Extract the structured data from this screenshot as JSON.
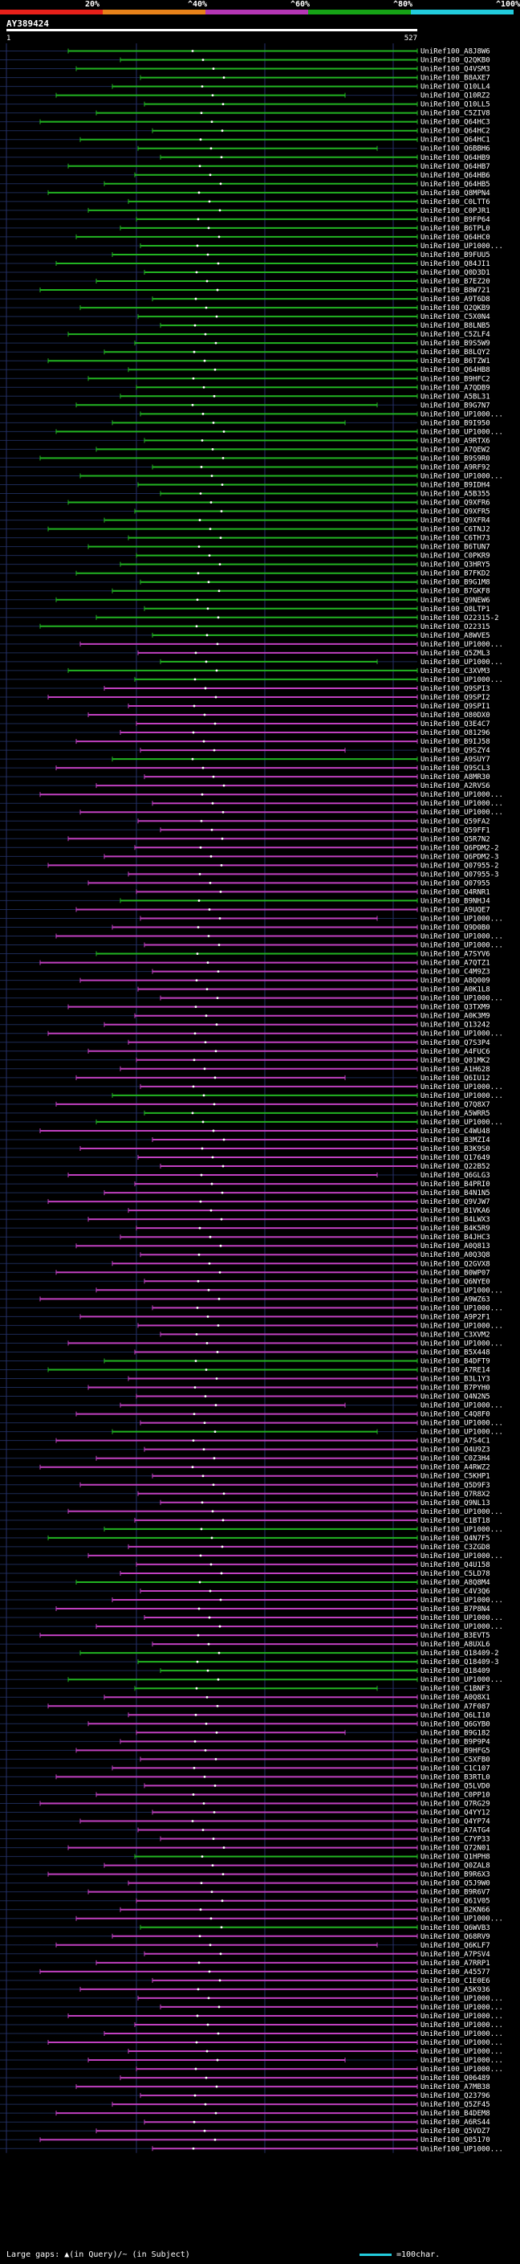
{
  "legend": {
    "bins": [
      {
        "label": "20%",
        "color": "#e8201a"
      },
      {
        "label": "^40%",
        "color": "#e8821a"
      },
      {
        "label": "^60%",
        "color": "#b536b5"
      },
      {
        "label": "^80%",
        "color": "#16a316"
      },
      {
        "label": "^100%",
        "color": "#22ccdd"
      }
    ]
  },
  "query": {
    "id": "AY389424",
    "ruler_start": "1",
    "ruler_end": "527"
  },
  "hits": [
    {
      "label": "UniRef100_A8J8W6",
      "color": "green"
    },
    {
      "label": "UniRef100_Q2QKB0",
      "color": "green"
    },
    {
      "label": "UniRef100_Q4VSM3",
      "color": "green"
    },
    {
      "label": "UniRef100_B8AXE7",
      "color": "green"
    },
    {
      "label": "UniRef100_Q10LL4",
      "color": "green"
    },
    {
      "label": "UniRef100_Q10RZ2",
      "color": "green"
    },
    {
      "label": "UniRef100_Q10LL5",
      "color": "green"
    },
    {
      "label": "UniRef100_C5ZIV8",
      "color": "green"
    },
    {
      "label": "UniRef100_Q64HC3",
      "color": "green"
    },
    {
      "label": "UniRef100_Q64HC2",
      "color": "green"
    },
    {
      "label": "UniRef100_Q64HC1",
      "color": "green"
    },
    {
      "label": "UniRef100_Q6BBH6",
      "color": "green"
    },
    {
      "label": "UniRef100_Q64HB9",
      "color": "green"
    },
    {
      "label": "UniRef100_Q64HB7",
      "color": "green"
    },
    {
      "label": "UniRef100_Q64HB6",
      "color": "green"
    },
    {
      "label": "UniRef100_Q64HB5",
      "color": "green"
    },
    {
      "label": "UniRef100_Q8MPN4",
      "color": "green"
    },
    {
      "label": "UniRef100_C0LTT6",
      "color": "green"
    },
    {
      "label": "UniRef100_C0PJR1",
      "color": "green"
    },
    {
      "label": "UniRef100_B9FP64",
      "color": "green"
    },
    {
      "label": "UniRef100_B6TPL0",
      "color": "green"
    },
    {
      "label": "UniRef100_Q64HC0",
      "color": "green"
    },
    {
      "label": "UniRef100_UP1000...",
      "color": "green"
    },
    {
      "label": "UniRef100_B9FUU5",
      "color": "green"
    },
    {
      "label": "UniRef100_Q84JI1",
      "color": "green"
    },
    {
      "label": "UniRef100_Q0D3D1",
      "color": "green"
    },
    {
      "label": "UniRef100_B7EZ20",
      "color": "green"
    },
    {
      "label": "UniRef100_B8W721",
      "color": "green"
    },
    {
      "label": "UniRef100_A9T6D8",
      "color": "green"
    },
    {
      "label": "UniRef100_Q2QKB9",
      "color": "green"
    },
    {
      "label": "UniRef100_C5X0N4",
      "color": "green"
    },
    {
      "label": "UniRef100_B8LNB5",
      "color": "green"
    },
    {
      "label": "UniRef100_C5ZLF4",
      "color": "green"
    },
    {
      "label": "UniRef100_B9S5W9",
      "color": "green"
    },
    {
      "label": "UniRef100_B8LQY2",
      "color": "green"
    },
    {
      "label": "UniRef100_B6TZW1",
      "color": "green"
    },
    {
      "label": "UniRef100_Q64HB8",
      "color": "green"
    },
    {
      "label": "UniRef100_B9HFC2",
      "color": "green"
    },
    {
      "label": "UniRef100_A7QDB9",
      "color": "green"
    },
    {
      "label": "UniRef100_A5BL31",
      "color": "green"
    },
    {
      "label": "UniRef100_B9G7N7",
      "color": "green"
    },
    {
      "label": "UniRef100_UP1000...",
      "color": "green"
    },
    {
      "label": "UniRef100_B9I950",
      "color": "green"
    },
    {
      "label": "UniRef100_UP1000...",
      "color": "green"
    },
    {
      "label": "UniRef100_A9RTX6",
      "color": "green"
    },
    {
      "label": "UniRef100_A7QEW2",
      "color": "green"
    },
    {
      "label": "UniRef100_B9S9R0",
      "color": "green"
    },
    {
      "label": "UniRef100_A9RF92",
      "color": "green"
    },
    {
      "label": "UniRef100_UP1000...",
      "color": "green"
    },
    {
      "label": "UniRef100_B9IDH4",
      "color": "green"
    },
    {
      "label": "UniRef100_A5B355",
      "color": "green"
    },
    {
      "label": "UniRef100_Q9XFR6",
      "color": "green"
    },
    {
      "label": "UniRef100_Q9XFR5",
      "color": "green"
    },
    {
      "label": "UniRef100_Q9XFR4",
      "color": "green"
    },
    {
      "label": "UniRef100_C6TNJ2",
      "color": "green"
    },
    {
      "label": "UniRef100_C6TH73",
      "color": "green"
    },
    {
      "label": "UniRef100_B6TUN7",
      "color": "green"
    },
    {
      "label": "UniRef100_C0PKR9",
      "color": "green"
    },
    {
      "label": "UniRef100_Q3HRY5",
      "color": "green"
    },
    {
      "label": "UniRef100_B7FKD2",
      "color": "green"
    },
    {
      "label": "UniRef100_B9G1M8",
      "color": "green"
    },
    {
      "label": "UniRef100_B7GKF8",
      "color": "green"
    },
    {
      "label": "UniRef100_Q9NEW6",
      "color": "green"
    },
    {
      "label": "UniRef100_Q8LTP1",
      "color": "green"
    },
    {
      "label": "UniRef100_O22315-2",
      "color": "green"
    },
    {
      "label": "UniRef100_O22315",
      "color": "green"
    },
    {
      "label": "UniRef100_A8WVE5",
      "color": "green"
    },
    {
      "label": "UniRef100_UP1000...",
      "color": "magenta"
    },
    {
      "label": "UniRef100_Q5ZML3",
      "color": "magenta"
    },
    {
      "label": "UniRef100_UP1000...",
      "color": "green"
    },
    {
      "label": "UniRef100_C3XVM3",
      "color": "green"
    },
    {
      "label": "UniRef100_UP1000...",
      "color": "green"
    },
    {
      "label": "UniRef100_Q9SPI3",
      "color": "magenta"
    },
    {
      "label": "UniRef100_Q9SPI2",
      "color": "magenta"
    },
    {
      "label": "UniRef100_Q9SPI1",
      "color": "magenta"
    },
    {
      "label": "UniRef100_O80DX0",
      "color": "magenta"
    },
    {
      "label": "UniRef100_Q3E4C7",
      "color": "magenta"
    },
    {
      "label": "UniRef100_O81296",
      "color": "magenta"
    },
    {
      "label": "UniRef100_B9IJ58",
      "color": "magenta"
    },
    {
      "label": "UniRef100_Q9SZY4",
      "color": "magenta"
    },
    {
      "label": "UniRef100_A9SUY7",
      "color": "green"
    },
    {
      "label": "UniRef100_Q9SCL3",
      "color": "magenta"
    },
    {
      "label": "UniRef100_A8MR30",
      "color": "magenta"
    },
    {
      "label": "UniRef100_A2RVS6",
      "color": "magenta"
    },
    {
      "label": "UniRef100_UP1000...",
      "color": "magenta"
    },
    {
      "label": "UniRef100_UP1000...",
      "color": "magenta"
    },
    {
      "label": "UniRef100_UP1000...",
      "color": "magenta"
    },
    {
      "label": "UniRef100_Q59FA2",
      "color": "magenta"
    },
    {
      "label": "UniRef100_Q59FF1",
      "color": "magenta"
    },
    {
      "label": "UniRef100_Q5R7N2",
      "color": "magenta"
    },
    {
      "label": "UniRef100_Q6PDM2-2",
      "color": "magenta"
    },
    {
      "label": "UniRef100_Q6PDM2-3",
      "color": "magenta"
    },
    {
      "label": "UniRef100_Q07955-2",
      "color": "magenta"
    },
    {
      "label": "UniRef100_Q07955-3",
      "color": "magenta"
    },
    {
      "label": "UniRef100_Q07955",
      "color": "magenta"
    },
    {
      "label": "UniRef100_Q4RNR1",
      "color": "magenta"
    },
    {
      "label": "UniRef100_B9NHJ4",
      "color": "green"
    },
    {
      "label": "UniRef100_A9UQE7",
      "color": "magenta"
    },
    {
      "label": "UniRef100_UP1000...",
      "color": "magenta"
    },
    {
      "label": "UniRef100_Q9D0B0",
      "color": "magenta"
    },
    {
      "label": "UniRef100_UP1000...",
      "color": "magenta"
    },
    {
      "label": "UniRef100_UP1000...",
      "color": "magenta"
    },
    {
      "label": "UniRef100_A7SYV6",
      "color": "green"
    },
    {
      "label": "UniRef100_A7QTZ1",
      "color": "magenta"
    },
    {
      "label": "UniRef100_C4M9Z3",
      "color": "magenta"
    },
    {
      "label": "UniRef100_A8Q009",
      "color": "magenta"
    },
    {
      "label": "UniRef100_A0K1L8",
      "color": "magenta"
    },
    {
      "label": "UniRef100_UP1000...",
      "color": "magenta"
    },
    {
      "label": "UniRef100_Q3TXM9",
      "color": "magenta"
    },
    {
      "label": "UniRef100_A0K3M9",
      "color": "magenta"
    },
    {
      "label": "UniRef100_Q13242",
      "color": "magenta"
    },
    {
      "label": "UniRef100_UP1000...",
      "color": "magenta"
    },
    {
      "label": "UniRef100_Q7S3P4",
      "color": "magenta"
    },
    {
      "label": "UniRef100_A4FUC6",
      "color": "magenta"
    },
    {
      "label": "UniRef100_Q01MK2",
      "color": "magenta"
    },
    {
      "label": "UniRef100_A1H628",
      "color": "magenta"
    },
    {
      "label": "UniRef100_Q6IU12",
      "color": "magenta"
    },
    {
      "label": "UniRef100_UP1000...",
      "color": "magenta"
    },
    {
      "label": "UniRef100_UP1000...",
      "color": "green"
    },
    {
      "label": "UniRef100_Q7Q8X7",
      "color": "magenta"
    },
    {
      "label": "UniRef100_A5WRR5",
      "color": "green"
    },
    {
      "label": "UniRef100_UP1000...",
      "color": "green"
    },
    {
      "label": "UniRef100_C4WU48",
      "color": "magenta"
    },
    {
      "label": "UniRef100_B3MZI4",
      "color": "magenta"
    },
    {
      "label": "UniRef100_B3K9S0",
      "color": "magenta"
    },
    {
      "label": "UniRef100_Q17649",
      "color": "magenta"
    },
    {
      "label": "UniRef100_Q22B52",
      "color": "magenta"
    },
    {
      "label": "UniRef100_Q6GLG3",
      "color": "magenta"
    },
    {
      "label": "UniRef100_B4PRI0",
      "color": "magenta"
    },
    {
      "label": "UniRef100_B4N1N5",
      "color": "magenta"
    },
    {
      "label": "UniRef100_Q9VJW7",
      "color": "magenta"
    },
    {
      "label": "UniRef100_B1VKA6",
      "color": "magenta"
    },
    {
      "label": "UniRef100_B4LWX3",
      "color": "magenta"
    },
    {
      "label": "UniRef100_B4K5R9",
      "color": "magenta"
    },
    {
      "label": "UniRef100_B4JHC3",
      "color": "magenta"
    },
    {
      "label": "UniRef100_A0Q813",
      "color": "magenta"
    },
    {
      "label": "UniRef100_A0Q3Q8",
      "color": "magenta"
    },
    {
      "label": "UniRef100_Q2GVX8",
      "color": "magenta"
    },
    {
      "label": "UniRef100_B0WP07",
      "color": "magenta"
    },
    {
      "label": "UniRef100_Q6NYE0",
      "color": "magenta"
    },
    {
      "label": "UniRef100_UP1000...",
      "color": "magenta"
    },
    {
      "label": "UniRef100_A9WZ63",
      "color": "magenta"
    },
    {
      "label": "UniRef100_UP1000...",
      "color": "magenta"
    },
    {
      "label": "UniRef100_A9P2F1",
      "color": "magenta"
    },
    {
      "label": "UniRef100_UP1000...",
      "color": "magenta"
    },
    {
      "label": "UniRef100_C3XVM2",
      "color": "magenta"
    },
    {
      "label": "UniRef100_UP1000...",
      "color": "magenta"
    },
    {
      "label": "UniRef100_B5X448",
      "color": "magenta"
    },
    {
      "label": "UniRef100_B4DFT9",
      "color": "green"
    },
    {
      "label": "UniRef100_A7RE14",
      "color": "green"
    },
    {
      "label": "UniRef100_B3L1Y3",
      "color": "magenta"
    },
    {
      "label": "UniRef100_B7PYH0",
      "color": "magenta"
    },
    {
      "label": "UniRef100_Q4N2N5",
      "color": "magenta"
    },
    {
      "label": "UniRef100_UP1000...",
      "color": "magenta"
    },
    {
      "label": "UniRef100_C4Q8F0",
      "color": "magenta"
    },
    {
      "label": "UniRef100_UP1000...",
      "color": "magenta"
    },
    {
      "label": "UniRef100_UP1000...",
      "color": "green"
    },
    {
      "label": "UniRef100_A7S4C1",
      "color": "magenta"
    },
    {
      "label": "UniRef100_Q4U9Z3",
      "color": "magenta"
    },
    {
      "label": "UniRef100_C0Z3H4",
      "color": "magenta"
    },
    {
      "label": "UniRef100_A4RWZ2",
      "color": "magenta"
    },
    {
      "label": "UniRef100_C5KHP1",
      "color": "magenta"
    },
    {
      "label": "UniRef100_Q5D9F3",
      "color": "magenta"
    },
    {
      "label": "UniRef100_Q7R8X2",
      "color": "magenta"
    },
    {
      "label": "UniRef100_Q9NL13",
      "color": "magenta"
    },
    {
      "label": "UniRef100_UP1000...",
      "color": "magenta"
    },
    {
      "label": "UniRef100_C1BT18",
      "color": "magenta"
    },
    {
      "label": "UniRef100_UP1000...",
      "color": "green"
    },
    {
      "label": "UniRef100_Q4N7F5",
      "color": "green"
    },
    {
      "label": "UniRef100_C3ZGD8",
      "color": "magenta"
    },
    {
      "label": "UniRef100_UP1000...",
      "color": "magenta"
    },
    {
      "label": "UniRef100_Q4U158",
      "color": "magenta"
    },
    {
      "label": "UniRef100_C5LD78",
      "color": "magenta"
    },
    {
      "label": "UniRef100_A8Q8M4",
      "color": "green"
    },
    {
      "label": "UniRef100_C4V3Q6",
      "color": "magenta"
    },
    {
      "label": "UniRef100_UP1000...",
      "color": "magenta"
    },
    {
      "label": "UniRef100_B7P8N4",
      "color": "magenta"
    },
    {
      "label": "UniRef100_UP1000...",
      "color": "magenta"
    },
    {
      "label": "UniRef100_UP1000...",
      "color": "magenta"
    },
    {
      "label": "UniRef100_B3EVT5",
      "color": "magenta"
    },
    {
      "label": "UniRef100_A8UXL6",
      "color": "magenta"
    },
    {
      "label": "UniRef100_Q18409-2",
      "color": "green"
    },
    {
      "label": "UniRef100_Q18409-3",
      "color": "green"
    },
    {
      "label": "UniRef100_Q18409",
      "color": "green"
    },
    {
      "label": "UniRef100_UP1000...",
      "color": "green"
    },
    {
      "label": "UniRef100_C1BNF3",
      "color": "green"
    },
    {
      "label": "UniRef100_A0Q8X1",
      "color": "magenta"
    },
    {
      "label": "UniRef100_A7F087",
      "color": "magenta"
    },
    {
      "label": "UniRef100_Q6LI10",
      "color": "magenta"
    },
    {
      "label": "UniRef100_Q6GYB0",
      "color": "magenta"
    },
    {
      "label": "UniRef100_B9G182",
      "color": "magenta"
    },
    {
      "label": "UniRef100_B9P9P4",
      "color": "magenta"
    },
    {
      "label": "UniRef100_B9HFG5",
      "color": "magenta"
    },
    {
      "label": "UniRef100_C5XFB0",
      "color": "magenta"
    },
    {
      "label": "UniRef100_C1C107",
      "color": "magenta"
    },
    {
      "label": "UniRef100_B3RTL0",
      "color": "magenta"
    },
    {
      "label": "UniRef100_Q5LVD0",
      "color": "magenta"
    },
    {
      "label": "UniRef100_C0PP10",
      "color": "magenta"
    },
    {
      "label": "UniRef100_Q7RG29",
      "color": "magenta"
    },
    {
      "label": "UniRef100_Q4YY12",
      "color": "magenta"
    },
    {
      "label": "UniRef100_Q4YP74",
      "color": "magenta"
    },
    {
      "label": "UniRef100_A7ATG4",
      "color": "magenta"
    },
    {
      "label": "UniRef100_C7YP33",
      "color": "magenta"
    },
    {
      "label": "UniRef100_Q72N01",
      "color": "magenta"
    },
    {
      "label": "UniRef100_Q1HPH8",
      "color": "green"
    },
    {
      "label": "UniRef100_Q0ZAL8",
      "color": "magenta"
    },
    {
      "label": "UniRef100_B9R6X3",
      "color": "magenta"
    },
    {
      "label": "UniRef100_Q5J9W0",
      "color": "magenta"
    },
    {
      "label": "UniRef100_B9R6V7",
      "color": "magenta"
    },
    {
      "label": "UniRef100_Q61V05",
      "color": "magenta"
    },
    {
      "label": "UniRef100_B2KN66",
      "color": "magenta"
    },
    {
      "label": "UniRef100_UP1000...",
      "color": "magenta"
    },
    {
      "label": "UniRef100_Q6WVB3",
      "color": "green"
    },
    {
      "label": "UniRef100_Q68RV9",
      "color": "magenta"
    },
    {
      "label": "UniRef100_Q6KLF7",
      "color": "magenta"
    },
    {
      "label": "UniRef100_A7PSV4",
      "color": "magenta"
    },
    {
      "label": "UniRef100_A7RRP1",
      "color": "magenta"
    },
    {
      "label": "UniRef100_A45577",
      "color": "magenta"
    },
    {
      "label": "UniRef100_C1E0E6",
      "color": "magenta"
    },
    {
      "label": "UniRef100_A5K936",
      "color": "magenta"
    },
    {
      "label": "UniRef100_UP1000...",
      "color": "magenta"
    },
    {
      "label": "UniRef100_UP1000...",
      "color": "magenta"
    },
    {
      "label": "UniRef100_UP1000...",
      "color": "magenta"
    },
    {
      "label": "UniRef100_UP1000...",
      "color": "magenta"
    },
    {
      "label": "UniRef100_UP1000...",
      "color": "magenta"
    },
    {
      "label": "UniRef100_UP1000...",
      "color": "magenta"
    },
    {
      "label": "UniRef100_UP1000...",
      "color": "magenta"
    },
    {
      "label": "UniRef100_UP1000...",
      "color": "magenta"
    },
    {
      "label": "UniRef100_UP1000...",
      "color": "magenta"
    },
    {
      "label": "UniRef100_Q06489",
      "color": "magenta"
    },
    {
      "label": "UniRef100_A7MB38",
      "color": "magenta"
    },
    {
      "label": "UniRef100_Q23796",
      "color": "magenta"
    },
    {
      "label": "UniRef100_Q5ZF45",
      "color": "magenta"
    },
    {
      "label": "UniRef100_B4DEM8",
      "color": "magenta"
    },
    {
      "label": "UniRef100_A6RS44",
      "color": "magenta"
    },
    {
      "label": "UniRef100_Q5VDZ7",
      "color": "magenta"
    },
    {
      "label": "UniRef100_Q05170",
      "color": "magenta"
    },
    {
      "label": "UniRef100_UP1000...",
      "color": "magenta"
    }
  ],
  "footer": {
    "gaps_text": "Large gaps: ▲(in Query)/~ (in Subject)",
    "scale_text": "=100char."
  },
  "colors": {
    "green": "#22b422",
    "magenta": "#c040c0",
    "cyan": "#22ccdd",
    "grid": "#1c2a55"
  }
}
